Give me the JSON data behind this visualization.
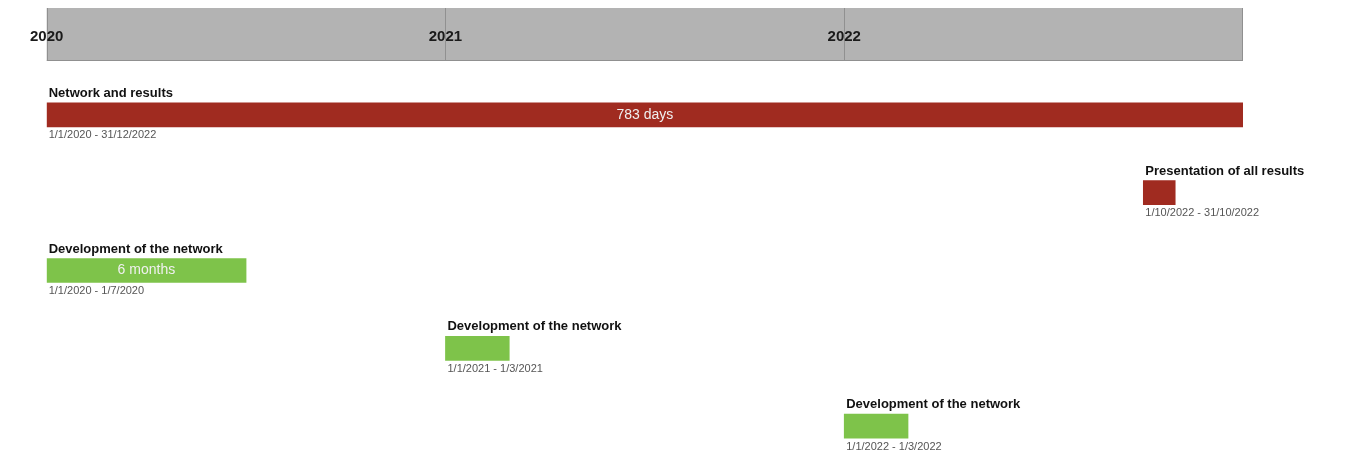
{
  "chart_data": {
    "type": "bar",
    "orientation": "horizontal",
    "tick_labels": "x",
    "categories": [
      "Network and results",
      "Presentation of all results",
      "Development of the network",
      "Development of the network",
      "Development of the network"
    ],
    "base": [
      2020,
      2022.75,
      2020,
      2021,
      2022
    ],
    "values": [
      3,
      0.08,
      0.5,
      0.16,
      0.16
    ],
    "colors": [
      "#a02b20",
      "#a02b20",
      "#7ec34a",
      "#7ec34a",
      "#7ec34a"
    ],
    "annotations": [
      "1/1/2020 - 31/12/2022",
      "1/10/2022 - 31/10/2022",
      "1/1/2020 - 1/7/2020",
      "1/1/2021 - 1/3/2021",
      "1/1/2022 - 1/3/2022",
      {
        "text": "783 days",
        "x": 2021.5,
        "y": "Network and results"
      },
      {
        "text": "6 months",
        "x": 2020.25,
        "y": "Development of the network"
      }
    ],
    "xlim": [
      2020,
      2023
    ],
    "xticks": [
      2020,
      2021,
      2022
    ]
  }
}
